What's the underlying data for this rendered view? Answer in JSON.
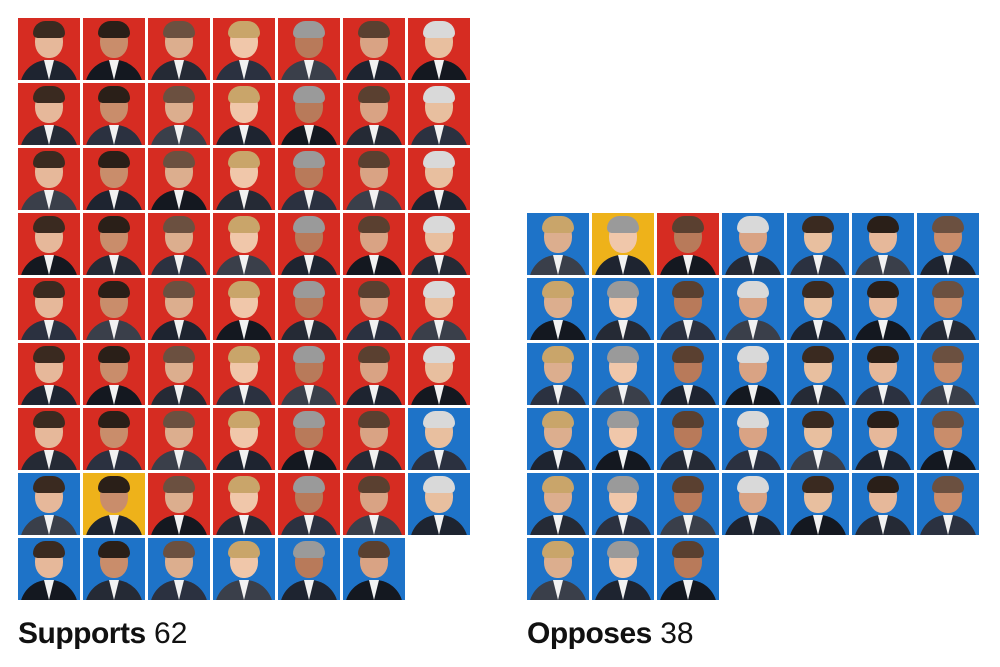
{
  "chart_data": {
    "type": "waffle",
    "colors": {
      "republican": "#d62c22",
      "democrat": "#1e73c8",
      "independent": "#eeb21a"
    },
    "groups": [
      {
        "label": "Supports",
        "count": "62",
        "tiles": [
          "republican",
          "republican",
          "republican",
          "republican",
          "republican",
          "republican",
          "republican",
          "republican",
          "republican",
          "republican",
          "republican",
          "republican",
          "republican",
          "republican",
          "republican",
          "republican",
          "republican",
          "republican",
          "republican",
          "republican",
          "republican",
          "republican",
          "republican",
          "republican",
          "republican",
          "republican",
          "republican",
          "republican",
          "republican",
          "republican",
          "republican",
          "republican",
          "republican",
          "republican",
          "republican",
          "republican",
          "republican",
          "republican",
          "republican",
          "republican",
          "republican",
          "republican",
          "republican",
          "republican",
          "republican",
          "republican",
          "republican",
          "republican",
          "democrat",
          "democrat",
          "independent",
          "republican",
          "republican",
          "republican",
          "republican",
          "democrat",
          "democrat",
          "democrat",
          "democrat",
          "democrat",
          "democrat",
          "democrat"
        ]
      },
      {
        "label": "Opposes",
        "count": "38",
        "tiles": [
          "democrat",
          "independent",
          "republican",
          "democrat",
          "democrat",
          "democrat",
          "democrat",
          "democrat",
          "democrat",
          "democrat",
          "democrat",
          "democrat",
          "democrat",
          "democrat",
          "democrat",
          "democrat",
          "democrat",
          "democrat",
          "democrat",
          "democrat",
          "democrat",
          "democrat",
          "democrat",
          "democrat",
          "democrat",
          "democrat",
          "democrat",
          "democrat",
          "democrat",
          "democrat",
          "democrat",
          "democrat",
          "democrat",
          "democrat",
          "democrat",
          "democrat",
          "democrat",
          "democrat"
        ]
      }
    ]
  }
}
